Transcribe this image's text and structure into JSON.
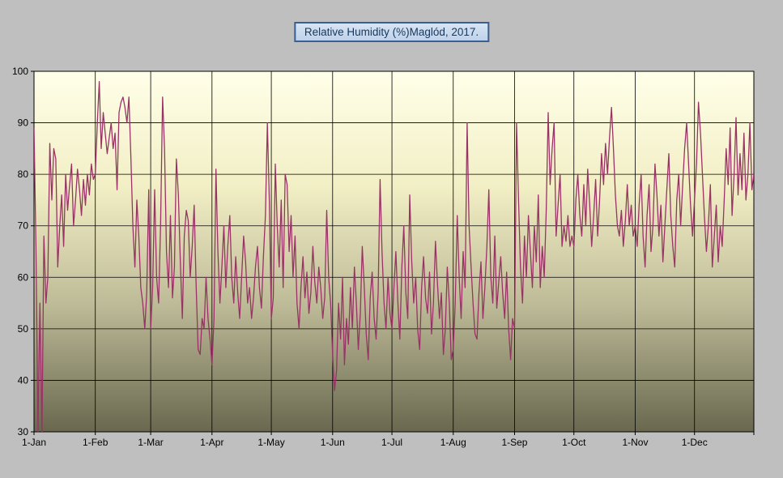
{
  "window": {
    "background": "#bfbfbf"
  },
  "title": {
    "text": "Relative Humidity (%)Maglód, 2017."
  },
  "colors": {
    "series_line": "#993366",
    "title_text": "#17375d",
    "title_border": "#3a5f94",
    "grid": "#000000"
  },
  "chart_data": {
    "type": "line",
    "title": "Relative Humidity (%)Maglód, 2017.",
    "xlabel": "",
    "ylabel": "",
    "ylim": [
      30,
      100
    ],
    "grid": true,
    "legend": "none",
    "y_ticks": [
      100,
      90,
      80,
      70,
      60,
      50,
      40,
      30
    ],
    "x_tick_labels": [
      "1-Jan",
      "1-Feb",
      "1-Mar",
      "1-Apr",
      "1-May",
      "1-Jun",
      "1-Jul",
      "1-Aug",
      "1-Sep",
      "1-Oct",
      "1-Nov",
      "1-Dec"
    ],
    "month_start_days": [
      0,
      31,
      59,
      90,
      120,
      151,
      181,
      212,
      243,
      273,
      304,
      334
    ],
    "total_days": 365,
    "plot_gradient": [
      "#FFFFE9",
      "#F2EFC5",
      "#BDBA97",
      "#69684F"
    ],
    "series": [
      {
        "name": "Relative Humidity (%)",
        "color": "#993366",
        "values": [
          89,
          66,
          30,
          55,
          29,
          68,
          55,
          60,
          86,
          75,
          85,
          83,
          62,
          70,
          76,
          66,
          80,
          73,
          78,
          82,
          70,
          75,
          81,
          77,
          72,
          79,
          74,
          80,
          76,
          82,
          79,
          80,
          90,
          98,
          85,
          92,
          88,
          84,
          87,
          90,
          85,
          88,
          77,
          92,
          94,
          95,
          93,
          90,
          95,
          83,
          70,
          62,
          75,
          68,
          58,
          55,
          50,
          57,
          77,
          50,
          58,
          77,
          60,
          55,
          70,
          95,
          85,
          65,
          58,
          72,
          56,
          62,
          83,
          76,
          63,
          52,
          68,
          73,
          71,
          60,
          66,
          74,
          58,
          46,
          45,
          52,
          50,
          60,
          52,
          48,
          43,
          52,
          81,
          65,
          55,
          62,
          70,
          58,
          66,
          72,
          60,
          55,
          64,
          57,
          52,
          60,
          68,
          63,
          55,
          58,
          52,
          56,
          62,
          66,
          58,
          54,
          64,
          72,
          90,
          75,
          52,
          56,
          82,
          70,
          62,
          75,
          58,
          80,
          78,
          65,
          72,
          60,
          68,
          55,
          50,
          58,
          64,
          56,
          61,
          53,
          57,
          66,
          59,
          55,
          62,
          58,
          52,
          56,
          73,
          60,
          55,
          45,
          38,
          42,
          55,
          48,
          60,
          43,
          52,
          47,
          58,
          50,
          62,
          55,
          46,
          53,
          66,
          58,
          49,
          44,
          56,
          61,
          52,
          48,
          57,
          79,
          65,
          55,
          50,
          60,
          53,
          50,
          58,
          65,
          55,
          48,
          62,
          70,
          57,
          52,
          76,
          63,
          55,
          60,
          50,
          46,
          58,
          64,
          56,
          53,
          61,
          49,
          55,
          67,
          59,
          52,
          57,
          45,
          50,
          62,
          55,
          44,
          46,
          55,
          72,
          60,
          52,
          65,
          58,
          90,
          70,
          62,
          55,
          49,
          48,
          57,
          63,
          52,
          58,
          66,
          77,
          60,
          55,
          68,
          54,
          59,
          64,
          57,
          52,
          61,
          50,
          44,
          52,
          50,
          90,
          75,
          62,
          55,
          68,
          60,
          72,
          65,
          58,
          70,
          63,
          76,
          58,
          66,
          60,
          73,
          92,
          78,
          85,
          90,
          68,
          74,
          80,
          66,
          70,
          67,
          72,
          66,
          68,
          66,
          75,
          80,
          72,
          68,
          78,
          70,
          81,
          74,
          66,
          72,
          79,
          68,
          75,
          84,
          78,
          86,
          80,
          87,
          93,
          85,
          76,
          70,
          68,
          73,
          66,
          71,
          78,
          70,
          74,
          68,
          70,
          66,
          74,
          80,
          68,
          62,
          72,
          78,
          65,
          70,
          82,
          76,
          68,
          74,
          63,
          70,
          77,
          84,
          72,
          66,
          62,
          75,
          80,
          70,
          78,
          85,
          90,
          82,
          74,
          68,
          75,
          82,
          94,
          88,
          80,
          72,
          65,
          70,
          78,
          62,
          68,
          74,
          63,
          70,
          66,
          75,
          85,
          78,
          89,
          72,
          80,
          91,
          76,
          84,
          77,
          88,
          75,
          80,
          90,
          77,
          80
        ]
      }
    ]
  }
}
